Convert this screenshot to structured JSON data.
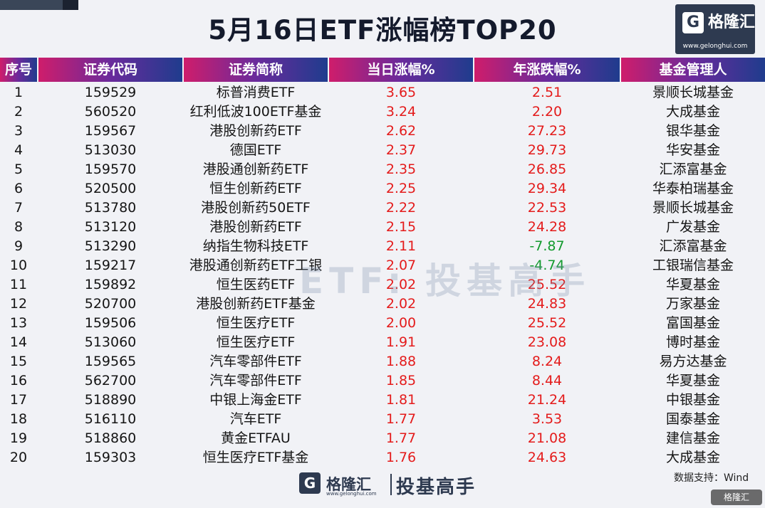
{
  "title": "5月16日ETF涨幅榜TOP20",
  "logo": {
    "mark": "G",
    "name": "格隆汇",
    "url": "www.gelonghui.com"
  },
  "columns": [
    "序号",
    "证券代码",
    "证券简称",
    "当日涨幅%",
    "年涨跌幅%",
    "基金管理人"
  ],
  "rows": [
    {
      "rank": "1",
      "code": "159529",
      "name": "标普消费ETF",
      "day": "3.65",
      "year": "2.51",
      "manager": "景顺长城基金",
      "year_neg": false
    },
    {
      "rank": "2",
      "code": "560520",
      "name": "红利低波100ETF基金",
      "day": "3.24",
      "year": "2.20",
      "manager": "大成基金",
      "year_neg": false
    },
    {
      "rank": "3",
      "code": "159567",
      "name": "港股创新药ETF",
      "day": "2.62",
      "year": "27.23",
      "manager": "银华基金",
      "year_neg": false
    },
    {
      "rank": "4",
      "code": "513030",
      "name": "德国ETF",
      "day": "2.37",
      "year": "29.73",
      "manager": "华安基金",
      "year_neg": false
    },
    {
      "rank": "5",
      "code": "159570",
      "name": "港股通创新药ETF",
      "day": "2.35",
      "year": "26.85",
      "manager": "汇添富基金",
      "year_neg": false
    },
    {
      "rank": "6",
      "code": "520500",
      "name": "恒生创新药ETF",
      "day": "2.25",
      "year": "29.34",
      "manager": "华泰柏瑞基金",
      "year_neg": false
    },
    {
      "rank": "7",
      "code": "513780",
      "name": "港股创新药50ETF",
      "day": "2.22",
      "year": "22.53",
      "manager": "景顺长城基金",
      "year_neg": false
    },
    {
      "rank": "8",
      "code": "513120",
      "name": "港股创新药ETF",
      "day": "2.15",
      "year": "24.28",
      "manager": "广发基金",
      "year_neg": false
    },
    {
      "rank": "9",
      "code": "513290",
      "name": "纳指生物科技ETF",
      "day": "2.11",
      "year": "-7.87",
      "manager": "汇添富基金",
      "year_neg": true
    },
    {
      "rank": "10",
      "code": "159217",
      "name": "港股通创新药ETF工银",
      "day": "2.07",
      "year": "-4.74",
      "manager": "工银瑞信基金",
      "year_neg": true
    },
    {
      "rank": "11",
      "code": "159892",
      "name": "恒生医药ETF",
      "day": "2.02",
      "year": "25.52",
      "manager": "华夏基金",
      "year_neg": false
    },
    {
      "rank": "12",
      "code": "520700",
      "name": "港股创新药ETF基金",
      "day": "2.02",
      "year": "24.83",
      "manager": "万家基金",
      "year_neg": false
    },
    {
      "rank": "13",
      "code": "159506",
      "name": "恒生医疗ETF",
      "day": "2.00",
      "year": "25.52",
      "manager": "富国基金",
      "year_neg": false
    },
    {
      "rank": "14",
      "code": "513060",
      "name": "恒生医疗ETF",
      "day": "1.91",
      "year": "23.08",
      "manager": "博时基金",
      "year_neg": false
    },
    {
      "rank": "15",
      "code": "159565",
      "name": "汽车零部件ETF",
      "day": "1.88",
      "year": "8.24",
      "manager": "易方达基金",
      "year_neg": false
    },
    {
      "rank": "16",
      "code": "562700",
      "name": "汽车零部件ETF",
      "day": "1.85",
      "year": "8.44",
      "manager": "华夏基金",
      "year_neg": false
    },
    {
      "rank": "17",
      "code": "518890",
      "name": "中银上海金ETF",
      "day": "1.81",
      "year": "21.24",
      "manager": "中银基金",
      "year_neg": false
    },
    {
      "rank": "18",
      "code": "516110",
      "name": "汽车ETF",
      "day": "1.77",
      "year": "3.53",
      "manager": "国泰基金",
      "year_neg": false
    },
    {
      "rank": "19",
      "code": "518860",
      "name": "黄金ETFAU",
      "day": "1.77",
      "year": "21.08",
      "manager": "建信基金",
      "year_neg": false
    },
    {
      "rank": "20",
      "code": "159303",
      "name": "恒生医疗ETF基金",
      "day": "1.76",
      "year": "24.63",
      "manager": "大成基金",
      "year_neg": false
    }
  ],
  "colors": {
    "positive": "#e41b1b",
    "negative": "#129a2d"
  },
  "watermark": "ETF: 投基高手",
  "source": "数据支持：Wind",
  "footer": {
    "mark": "G",
    "name": "格隆汇",
    "url": "www.gelonghui.com",
    "brand": "投基高手"
  },
  "corner_badge": "格隆汇"
}
